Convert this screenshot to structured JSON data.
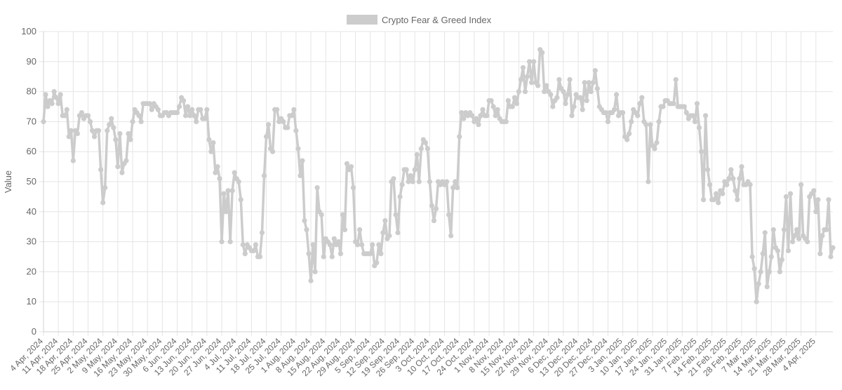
{
  "chart_data": {
    "type": "line",
    "title": "",
    "xlabel": "",
    "ylabel": "Value",
    "ylim": [
      0,
      100
    ],
    "y_ticks": [
      0,
      10,
      20,
      30,
      40,
      50,
      60,
      70,
      80,
      90,
      100
    ],
    "grid": true,
    "legend_position": "top-center",
    "series_color": "#cccccc",
    "grid_color": "#e5e5e5",
    "x_tick_labels": [
      "4 Apr, 2024",
      "11 Apr, 2024",
      "18 Apr, 2024",
      "25 Apr, 2024",
      "2 May, 2024",
      "9 May, 2024",
      "16 May, 2024",
      "23 May, 2024",
      "30 May, 2024",
      "6 Jun, 2024",
      "13 Jun, 2024",
      "20 Jun, 2024",
      "27 Jun, 2024",
      "4 Jul, 2024",
      "11 Jul, 2024",
      "18 Jul, 2024",
      "25 Jul, 2024",
      "1 Aug, 2024",
      "8 Aug, 2024",
      "15 Aug, 2024",
      "22 Aug, 2024",
      "29 Aug, 2024",
      "5 Sep, 2024",
      "12 Sep, 2024",
      "19 Sep, 2024",
      "26 Sep, 2024",
      "3 Oct, 2024",
      "10 Oct, 2024",
      "17 Oct, 2024",
      "24 Oct, 2024",
      "1 Nov, 2024",
      "8 Nov, 2024",
      "15 Nov, 2024",
      "22 Nov, 2024",
      "29 Nov, 2024",
      "6 Dec, 2024",
      "13 Dec, 2024",
      "20 Dec, 2024",
      "27 Dec, 2024",
      "3 Jan, 2025",
      "10 Jan, 2025",
      "17 Jan, 2025",
      "24 Jan, 2025",
      "31 Jan, 2025",
      "7 Feb, 2025",
      "14 Feb, 2025",
      "21 Feb, 2025",
      "28 Feb, 2025",
      "7 Mar, 2025",
      "14 Mar, 2025",
      "21 Mar, 2025",
      "28 Mar, 2025",
      "4 Apr, 2025"
    ],
    "series": [
      {
        "name": "Crypto Fear & Greed Index",
        "x_start": "4 Apr, 2024",
        "x_step_days": 1,
        "values": [
          70,
          79,
          75,
          77,
          76,
          80,
          78,
          76,
          79,
          72,
          72,
          74,
          65,
          67,
          57,
          67,
          66,
          72,
          73,
          71,
          72,
          72,
          70,
          67,
          65,
          67,
          67,
          54,
          43,
          48,
          67,
          69,
          71,
          68,
          64,
          55,
          66,
          53,
          56,
          57,
          66,
          64,
          70,
          74,
          73,
          72,
          70,
          76,
          76,
          76,
          76,
          74,
          76,
          75,
          74,
          72,
          72,
          73,
          73,
          72,
          73,
          73,
          73,
          73,
          75,
          78,
          77,
          72,
          75,
          72,
          74,
          72,
          70,
          74,
          74,
          71,
          71,
          74,
          64,
          60,
          63,
          53,
          55,
          51,
          30,
          46,
          40,
          47,
          30,
          47,
          53,
          51,
          50,
          44,
          29,
          26,
          29,
          28,
          27,
          27,
          29,
          25,
          25,
          33,
          52,
          65,
          69,
          61,
          60,
          74,
          74,
          70,
          71,
          70,
          68,
          68,
          72,
          72,
          74,
          67,
          61,
          52,
          57,
          37,
          34,
          26,
          17,
          29,
          20,
          48,
          40,
          39,
          25,
          31,
          30,
          29,
          25,
          31,
          29,
          30,
          26,
          39,
          34,
          56,
          54,
          55,
          48,
          30,
          29,
          34,
          29,
          26,
          26,
          26,
          26,
          29,
          22,
          23,
          29,
          26,
          33,
          37,
          31,
          32,
          50,
          51,
          39,
          33,
          45,
          49,
          54,
          54,
          50,
          52,
          50,
          54,
          59,
          50,
          61,
          64,
          63,
          61,
          50,
          42,
          37,
          41,
          50,
          49,
          50,
          49,
          50,
          39,
          32,
          48,
          50,
          48,
          65,
          73,
          71,
          73,
          72,
          73,
          72,
          70,
          71,
          69,
          72,
          74,
          72,
          72,
          77,
          77,
          75,
          72,
          74,
          71,
          70,
          70,
          70,
          77,
          75,
          75,
          78,
          76,
          80,
          84,
          88,
          80,
          85,
          90,
          83,
          90,
          83,
          82,
          94,
          93,
          80,
          82,
          80,
          79,
          75,
          77,
          78,
          84,
          81,
          80,
          76,
          79,
          84,
          72,
          75,
          79,
          78,
          78,
          74,
          83,
          77,
          83,
          80,
          83,
          87,
          81,
          75,
          74,
          73,
          73,
          70,
          73,
          73,
          74,
          79,
          72,
          73,
          73,
          65,
          64,
          66,
          70,
          74,
          73,
          72,
          76,
          78,
          70,
          69,
          50,
          69,
          62,
          61,
          63,
          70,
          75,
          75,
          77,
          77,
          76,
          76,
          76,
          84,
          75,
          75,
          75,
          75,
          73,
          71,
          72,
          72,
          70,
          76,
          68,
          60,
          44,
          72,
          54,
          49,
          44,
          44,
          46,
          43,
          47,
          46,
          50,
          49,
          51,
          54,
          51,
          47,
          44,
          51,
          55,
          49,
          49,
          50,
          49,
          25,
          21,
          10,
          16,
          20,
          26,
          33,
          15,
          20,
          25,
          34,
          28,
          27,
          20,
          24,
          34,
          45,
          27,
          46,
          30,
          32,
          34,
          31,
          49,
          32,
          31,
          30,
          45,
          46,
          47,
          40,
          44,
          26,
          32,
          34,
          34,
          44,
          25,
          28
        ]
      }
    ]
  }
}
